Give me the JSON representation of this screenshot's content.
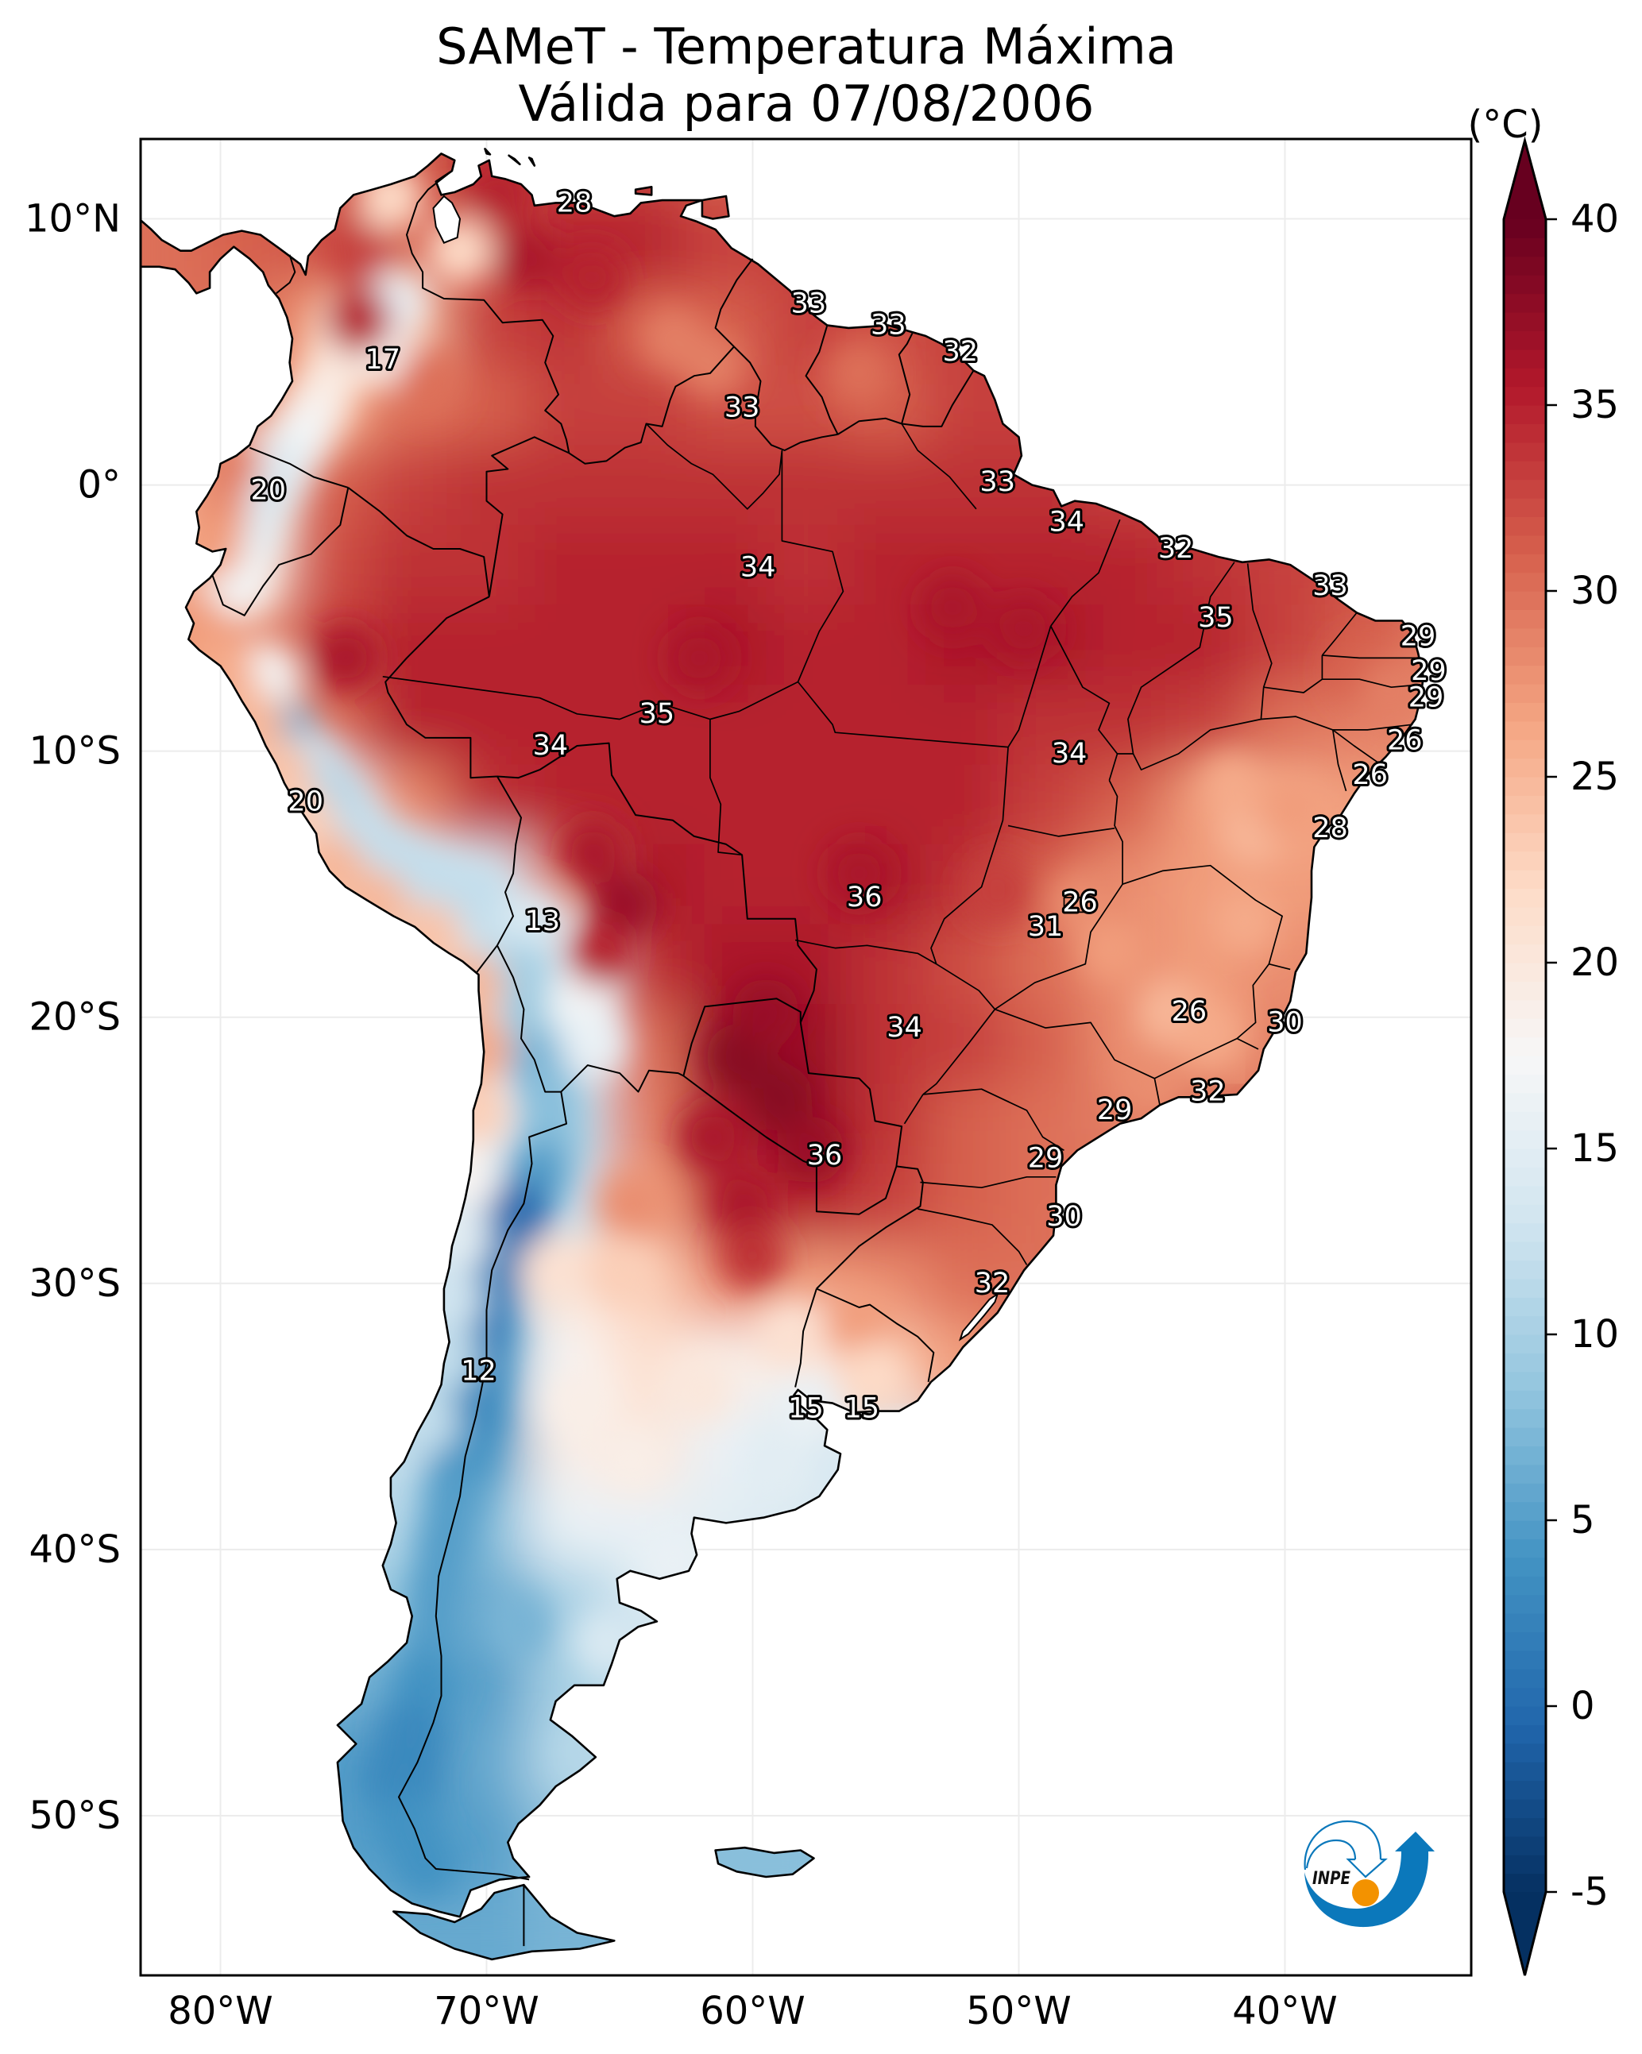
{
  "header": {
    "title_line1": "SAMeT - Temperatura Máxima",
    "title_line2": "Válida para 07/08/2006"
  },
  "chart_data": {
    "type": "heatmap",
    "title": "SAMeT - Temperatura Máxima",
    "subtitle": "Válida para 07/08/2006",
    "xlabel": "",
    "ylabel": "",
    "projection": "PlateCarree",
    "extent": {
      "lon": [
        -83,
        -33
      ],
      "lat": [
        -56,
        13
      ]
    },
    "x_ticks": [
      -80,
      -70,
      -60,
      -50,
      -40
    ],
    "x_tick_labels": [
      "80°W",
      "70°W",
      "60°W",
      "50°W",
      "40°W"
    ],
    "y_ticks": [
      10,
      0,
      -10,
      -20,
      -30,
      -40,
      -50
    ],
    "y_tick_labels": [
      "10°N",
      "0°",
      "10°S",
      "20°S",
      "30°S",
      "40°S",
      "50°S"
    ],
    "grid": true,
    "colorbar": {
      "label": "(°C)",
      "placement": "right",
      "min": -5,
      "max": 40,
      "level_step": 0.5,
      "extend": "both",
      "ticks": [
        -5,
        0,
        5,
        10,
        15,
        20,
        25,
        30,
        35,
        40
      ],
      "tick_labels": [
        "-5",
        "0",
        "5",
        "10",
        "15",
        "20",
        "25",
        "30",
        "35",
        "40"
      ],
      "colormap": "RdBu_r",
      "colormap_stops": [
        [
          0.0,
          "#053061"
        ],
        [
          0.1,
          "#2166ac"
        ],
        [
          0.2,
          "#4393c3"
        ],
        [
          0.3,
          "#92c5de"
        ],
        [
          0.4,
          "#d1e5f0"
        ],
        [
          0.5,
          "#f7f7f7"
        ],
        [
          0.6,
          "#fddbc7"
        ],
        [
          0.7,
          "#f4a582"
        ],
        [
          0.8,
          "#d6604d"
        ],
        [
          0.9,
          "#b2182b"
        ],
        [
          1.0,
          "#67001f"
        ]
      ]
    },
    "field_grid": {
      "units": "°C",
      "cell_deg": 3,
      "lon": [
        -82,
        -79,
        -76,
        -73,
        -70,
        -67,
        -64,
        -61,
        -58,
        -55,
        -52,
        -49,
        -46,
        -43,
        -40,
        -37,
        -34
      ],
      "lat": [
        12,
        9,
        6,
        3,
        0,
        -3,
        -6,
        -9,
        -12,
        -15,
        -18,
        -21,
        -24,
        -27,
        -30,
        -33,
        -36,
        -39,
        -42,
        -45,
        -48,
        -51,
        -54
      ],
      "values": [
        [
          30,
          31,
          32,
          31,
          34,
          33,
          33,
          31,
          null,
          null,
          null,
          null,
          null,
          null,
          null,
          null,
          null
        ],
        [
          30,
          31,
          32,
          31,
          32,
          35,
          35,
          33,
          33,
          null,
          null,
          null,
          null,
          null,
          null,
          null,
          null
        ],
        [
          30,
          30,
          27,
          25,
          33,
          34,
          31,
          31,
          33,
          32,
          33,
          33,
          null,
          null,
          null,
          null,
          null
        ],
        [
          null,
          29,
          26,
          30,
          31,
          33,
          33,
          32,
          32,
          31,
          33,
          33,
          null,
          null,
          null,
          null,
          null
        ],
        [
          26,
          21,
          31,
          33,
          34,
          34,
          34,
          34,
          34,
          34,
          34,
          34,
          33,
          33,
          null,
          null,
          null
        ],
        [
          26,
          21,
          32,
          34,
          34,
          35,
          35,
          35,
          34,
          35,
          35,
          35,
          35,
          34,
          33,
          32,
          32
        ],
        [
          28,
          28,
          33,
          35,
          35,
          35,
          35,
          36,
          35,
          35,
          36,
          36,
          35,
          35,
          33,
          31,
          29
        ],
        [
          null,
          22,
          30,
          35,
          35,
          35,
          35,
          35,
          35,
          35,
          35,
          34,
          34,
          33,
          30,
          29,
          28
        ],
        [
          null,
          19,
          16,
          28,
          34,
          35,
          35,
          35,
          35,
          35,
          35,
          33,
          31,
          27,
          26,
          27,
          null
        ],
        [
          null,
          null,
          19,
          14,
          14,
          30,
          36,
          35,
          35,
          36,
          34,
          31,
          28,
          27,
          27,
          27,
          null
        ],
        [
          null,
          null,
          null,
          20,
          15,
          18,
          34,
          36,
          36,
          34,
          32,
          30,
          28,
          27,
          28,
          28,
          null
        ],
        [
          null,
          null,
          null,
          null,
          18,
          14,
          30,
          37,
          37,
          34,
          33,
          31,
          28,
          27,
          29,
          null,
          null
        ],
        [
          null,
          null,
          null,
          null,
          16,
          12,
          29,
          36,
          37,
          34,
          31,
          30,
          29,
          31,
          null,
          null,
          null
        ],
        [
          null,
          null,
          null,
          null,
          11,
          12,
          27,
          34,
          35,
          33,
          31,
          30,
          30,
          null,
          null,
          null,
          null
        ],
        [
          null,
          null,
          null,
          12,
          9,
          20,
          23,
          28,
          27,
          28,
          30,
          30,
          null,
          null,
          null,
          null,
          null
        ],
        [
          null,
          null,
          null,
          11,
          7,
          18,
          21,
          19,
          19,
          24,
          27,
          null,
          null,
          null,
          null,
          null,
          null
        ],
        [
          null,
          null,
          null,
          12,
          5,
          19,
          20,
          16,
          14,
          14,
          null,
          null,
          null,
          null,
          null,
          null,
          null
        ],
        [
          null,
          null,
          11,
          11,
          8,
          16,
          16,
          15,
          14,
          null,
          null,
          null,
          null,
          null,
          null,
          null,
          null
        ],
        [
          null,
          null,
          9,
          9,
          6,
          10,
          14,
          14,
          null,
          null,
          null,
          null,
          null,
          null,
          null,
          null,
          null
        ],
        [
          null,
          null,
          7,
          6,
          5,
          10,
          12,
          null,
          null,
          null,
          null,
          null,
          null,
          null,
          null,
          null,
          null
        ],
        [
          null,
          null,
          5,
          3,
          6,
          11,
          11,
          null,
          null,
          null,
          null,
          null,
          null,
          null,
          null,
          null,
          null
        ],
        [
          null,
          null,
          5,
          5,
          5,
          8,
          8,
          8,
          8,
          null,
          null,
          null,
          null,
          null,
          null,
          null,
          null
        ],
        [
          null,
          null,
          null,
          6,
          6,
          7,
          7,
          null,
          null,
          null,
          null,
          null,
          null,
          null,
          null,
          null,
          null
        ]
      ]
    },
    "field_details": [
      [
        -75.3,
        6.0,
        20
      ],
      [
        -73.4,
        6.8,
        16
      ],
      [
        -74.0,
        5.0,
        18
      ],
      [
        -75.6,
        4.5,
        20
      ],
      [
        -76.3,
        3.0,
        19
      ],
      [
        -77.0,
        1.8,
        17
      ],
      [
        -77.8,
        0.6,
        15
      ],
      [
        -78.5,
        -0.6,
        14
      ],
      [
        -78.9,
        -2.0,
        15
      ],
      [
        -79.3,
        -3.6,
        17
      ],
      [
        -78.3,
        -7.2,
        17
      ],
      [
        -77.7,
        -9.3,
        6
      ],
      [
        -76.6,
        -10.5,
        12
      ],
      [
        -75.7,
        -11.9,
        11
      ],
      [
        -74.6,
        -13.2,
        12
      ],
      [
        -73.2,
        -14.2,
        12
      ],
      [
        -71.8,
        -14.9,
        12
      ],
      [
        -70.4,
        -15.4,
        12
      ],
      [
        -69.4,
        -16.8,
        12
      ],
      [
        -68.3,
        -16.5,
        14
      ],
      [
        -68.6,
        -18.4,
        10
      ],
      [
        -68.2,
        -20.0,
        9
      ],
      [
        -68.0,
        -21.8,
        7
      ],
      [
        -67.6,
        -23.2,
        8
      ],
      [
        -67.6,
        -24.6,
        8
      ],
      [
        -68.1,
        -25.9,
        5
      ],
      [
        -68.8,
        -27.4,
        0
      ],
      [
        -69.4,
        -28.7,
        1
      ],
      [
        -69.9,
        -30.2,
        2
      ],
      [
        -70.1,
        -31.8,
        2
      ],
      [
        -70.3,
        -33.4,
        3
      ],
      [
        -70.5,
        -35.0,
        3
      ],
      [
        -70.9,
        -36.6,
        4
      ],
      [
        -71.2,
        -38.2,
        5
      ],
      [
        -71.5,
        -39.8,
        5
      ],
      [
        -71.8,
        -41.5,
        5
      ],
      [
        -72.0,
        -43.3,
        5
      ],
      [
        -72.3,
        -45.1,
        4
      ],
      [
        -72.8,
        -46.9,
        3
      ],
      [
        -73.2,
        -48.7,
        3
      ],
      [
        -73.0,
        -50.4,
        4
      ],
      [
        -72.3,
        -51.9,
        4
      ],
      [
        -80.9,
        -5.4,
        27
      ],
      [
        -79.9,
        -7.0,
        26
      ],
      [
        -78.8,
        -8.9,
        25
      ],
      [
        -77.8,
        -10.8,
        24
      ],
      [
        -76.9,
        -12.6,
        23
      ],
      [
        -75.8,
        -14.4,
        25
      ],
      [
        -74.2,
        -15.7,
        25
      ],
      [
        -72.2,
        -16.9,
        24
      ],
      [
        -70.6,
        -18.8,
        25
      ],
      [
        -70.3,
        -21.2,
        26
      ],
      [
        -70.4,
        -23.6,
        23
      ],
      [
        -70.7,
        -26.0,
        18
      ],
      [
        -71.1,
        -28.3,
        15
      ],
      [
        -71.4,
        -30.6,
        13
      ],
      [
        -71.6,
        -32.8,
        12
      ],
      [
        -72.3,
        -35.2,
        12
      ],
      [
        -80.2,
        -1.0,
        28
      ],
      [
        -79.7,
        0.8,
        29
      ],
      [
        -80.4,
        -2.3,
        27
      ],
      [
        -74.8,
        6.2,
        35
      ],
      [
        -74.8,
        8.8,
        33
      ],
      [
        -73.6,
        10.8,
        22
      ],
      [
        -71.0,
        8.8,
        22
      ],
      [
        -72.2,
        3.8,
        30
      ],
      [
        -68.5,
        8.5,
        36
      ],
      [
        -66.0,
        7.8,
        35
      ],
      [
        -69.5,
        11.0,
        35
      ],
      [
        -63.0,
        5.5,
        29
      ],
      [
        -61.5,
        4.5,
        29
      ],
      [
        -56.0,
        4.2,
        30
      ],
      [
        -66.5,
        -19.5,
        17
      ],
      [
        -66.0,
        -21.0,
        16
      ],
      [
        -75.3,
        -6.5,
        36
      ],
      [
        -62.0,
        -6.5,
        36
      ],
      [
        -52.5,
        -4.6,
        36
      ],
      [
        -49.8,
        -5.4,
        36
      ],
      [
        -64.8,
        -15.8,
        37
      ],
      [
        -66.0,
        -13.8,
        36
      ],
      [
        -65.7,
        -17.6,
        35
      ],
      [
        -56.0,
        -14.6,
        36
      ],
      [
        -50.8,
        -15.2,
        33
      ],
      [
        -60.5,
        -21.5,
        38
      ],
      [
        -59.0,
        -23.0,
        38
      ],
      [
        -57.8,
        -25.0,
        37
      ],
      [
        -59.5,
        -19.8,
        37
      ],
      [
        -61.5,
        -24.5,
        36
      ],
      [
        -60.3,
        -27.0,
        36
      ],
      [
        -60.0,
        -29.0,
        34
      ],
      [
        -41.2,
        -13.0,
        25
      ],
      [
        -42.0,
        -11.3,
        26
      ],
      [
        -44.3,
        -19.8,
        25
      ],
      [
        -42.8,
        -20.6,
        26
      ],
      [
        -41.5,
        -16.4,
        26
      ],
      [
        -39.8,
        -12.2,
        27
      ],
      [
        -47.7,
        -15.7,
        28
      ],
      [
        -46.5,
        -17.5,
        27
      ],
      [
        -37.0,
        -7.0,
        31
      ],
      [
        -36.0,
        -7.8,
        29
      ],
      [
        -45.0,
        -22.5,
        28
      ],
      [
        -68.8,
        -42.8,
        7
      ],
      [
        -66.0,
        -47.5,
        11
      ],
      [
        -65.5,
        -43.5,
        14
      ],
      [
        -63.0,
        -40.5,
        16
      ],
      [
        -59.0,
        -37.0,
        15
      ],
      [
        -64.5,
        -36.6,
        19
      ],
      [
        -66.5,
        -34.5,
        19
      ],
      [
        -62.0,
        -34.0,
        20
      ],
      [
        -56.0,
        -31.5,
        27
      ],
      [
        -55.5,
        -33.5,
        22
      ],
      [
        -58.0,
        -34.7,
        16
      ],
      [
        -67.5,
        -29.5,
        21
      ],
      [
        -65.0,
        -29.5,
        23
      ],
      [
        -64.5,
        -27.0,
        28
      ],
      [
        -58.5,
        -32.0,
        21
      ]
    ],
    "station_labels": [
      {
        "lon": -66.7,
        "lat": 10.6,
        "value": 28
      },
      {
        "lon": -57.9,
        "lat": 6.8,
        "value": 33
      },
      {
        "lon": -54.9,
        "lat": 6.0,
        "value": 33
      },
      {
        "lon": -52.2,
        "lat": 5.0,
        "value": 32
      },
      {
        "lon": -73.9,
        "lat": 4.7,
        "value": 17
      },
      {
        "lon": -60.4,
        "lat": 2.9,
        "value": 33
      },
      {
        "lon": -50.8,
        "lat": 0.1,
        "value": 33
      },
      {
        "lon": -78.2,
        "lat": -0.2,
        "value": 20
      },
      {
        "lon": -48.2,
        "lat": -1.4,
        "value": 34
      },
      {
        "lon": -44.1,
        "lat": -2.4,
        "value": 32
      },
      {
        "lon": -59.8,
        "lat": -3.1,
        "value": 34
      },
      {
        "lon": -38.3,
        "lat": -3.8,
        "value": 33
      },
      {
        "lon": -42.6,
        "lat": -5.0,
        "value": 35
      },
      {
        "lon": -35.0,
        "lat": -5.7,
        "value": 29
      },
      {
        "lon": -34.6,
        "lat": -7.0,
        "value": 29
      },
      {
        "lon": -34.7,
        "lat": -8.0,
        "value": 29
      },
      {
        "lon": -63.6,
        "lat": -8.6,
        "value": 35
      },
      {
        "lon": -35.5,
        "lat": -9.6,
        "value": 26
      },
      {
        "lon": -67.6,
        "lat": -9.8,
        "value": 34
      },
      {
        "lon": -48.1,
        "lat": -10.1,
        "value": 34
      },
      {
        "lon": -36.8,
        "lat": -10.9,
        "value": 26
      },
      {
        "lon": -76.8,
        "lat": -11.9,
        "value": 20
      },
      {
        "lon": -38.3,
        "lat": -12.9,
        "value": 28
      },
      {
        "lon": -55.8,
        "lat": -15.5,
        "value": 36
      },
      {
        "lon": -47.7,
        "lat": -15.7,
        "value": 26
      },
      {
        "lon": -67.9,
        "lat": -16.4,
        "value": 13
      },
      {
        "lon": -49.0,
        "lat": -16.6,
        "value": 31
      },
      {
        "lon": -43.6,
        "lat": -19.8,
        "value": 26
      },
      {
        "lon": -40.0,
        "lat": -20.2,
        "value": 30
      },
      {
        "lon": -54.3,
        "lat": -20.4,
        "value": 34
      },
      {
        "lon": -42.9,
        "lat": -22.8,
        "value": 32
      },
      {
        "lon": -46.4,
        "lat": -23.5,
        "value": 29
      },
      {
        "lon": -57.3,
        "lat": -25.2,
        "value": 36
      },
      {
        "lon": -49.0,
        "lat": -25.3,
        "value": 29
      },
      {
        "lon": -48.3,
        "lat": -27.5,
        "value": 30
      },
      {
        "lon": -51.0,
        "lat": -30.0,
        "value": 32
      },
      {
        "lon": -70.3,
        "lat": -33.3,
        "value": 12
      },
      {
        "lon": -58.0,
        "lat": -34.7,
        "value": 15
      },
      {
        "lon": -55.9,
        "lat": -34.7,
        "value": 15
      }
    ]
  },
  "logo": {
    "text": "INPE",
    "primary_color": "#0b78bb",
    "accent_color": "#f39200"
  }
}
